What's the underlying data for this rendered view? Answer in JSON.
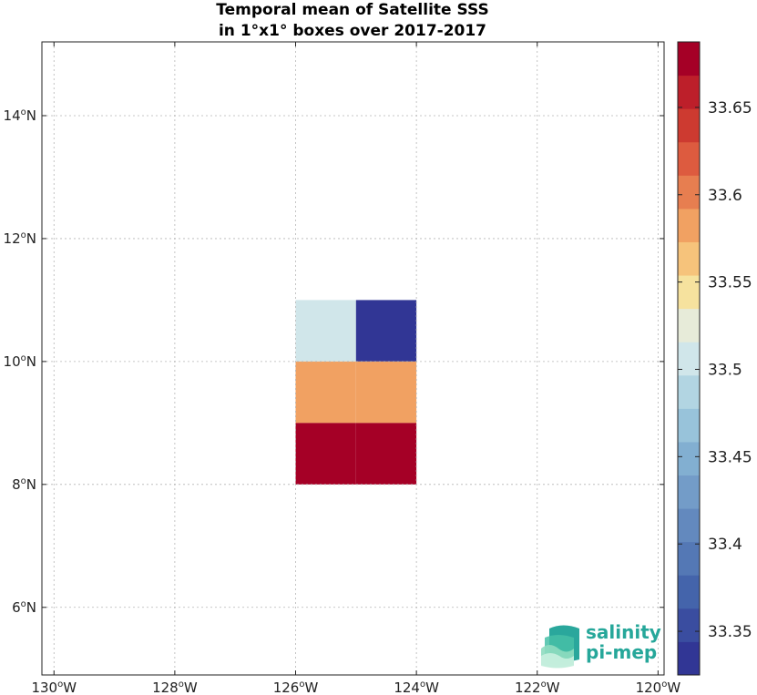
{
  "chart_data": {
    "type": "heatmap",
    "title": [
      "Temporal mean of Satellite SSS",
      "in 1°x1° boxes over 2017-2017"
    ],
    "xlim": [
      -130.2,
      -119.9
    ],
    "ylim": [
      4.9,
      15.2
    ],
    "x_ticks": [
      {
        "value": -130,
        "label": "130",
        "hemi": "W"
      },
      {
        "value": -128,
        "label": "128",
        "hemi": "W"
      },
      {
        "value": -126,
        "label": "126",
        "hemi": "W"
      },
      {
        "value": -124,
        "label": "124",
        "hemi": "W"
      },
      {
        "value": -122,
        "label": "122",
        "hemi": "W"
      },
      {
        "value": -120,
        "label": "120",
        "hemi": "W"
      }
    ],
    "y_ticks": [
      {
        "value": 6,
        "label": "6",
        "hemi": "N"
      },
      {
        "value": 8,
        "label": "8",
        "hemi": "N"
      },
      {
        "value": 10,
        "label": "10",
        "hemi": "N"
      },
      {
        "value": 12,
        "label": "12",
        "hemi": "N"
      },
      {
        "value": 14,
        "label": "14",
        "hemi": "N"
      }
    ],
    "grid": true,
    "cells": [
      {
        "lon_min": -126,
        "lon_max": -125,
        "lat_min": 10,
        "lat_max": 11,
        "value": 33.5
      },
      {
        "lon_min": -125,
        "lon_max": -124,
        "lat_min": 10,
        "lat_max": 11,
        "value": 33.33
      },
      {
        "lon_min": -126,
        "lon_max": -125,
        "lat_min": 9,
        "lat_max": 10,
        "value": 33.58
      },
      {
        "lon_min": -125,
        "lon_max": -124,
        "lat_min": 9,
        "lat_max": 10,
        "value": 33.58
      },
      {
        "lon_min": -126,
        "lon_max": -125,
        "lat_min": 8,
        "lat_max": 9,
        "value": 33.68
      },
      {
        "lon_min": -125,
        "lon_max": -124,
        "lat_min": 8,
        "lat_max": 9,
        "value": 33.68
      }
    ],
    "colorbar": {
      "vmin": 33.325,
      "vmax": 33.6875,
      "colors": [
        "#313695",
        "#3a4da0",
        "#4464ab",
        "#5478b5",
        "#6389be",
        "#739cc8",
        "#82afd1",
        "#98c3da",
        "#b2d5e2",
        "#d0e6ea",
        "#e7ebd9",
        "#f6e29e",
        "#f6c37b",
        "#f1a162",
        "#e77e50",
        "#dd5b3f",
        "#cd3a30",
        "#bd1f2a",
        "#a50026"
      ],
      "ticks": [
        {
          "value": 33.35,
          "label": "33.35"
        },
        {
          "value": 33.4,
          "label": "33.4"
        },
        {
          "value": 33.45,
          "label": "33.45"
        },
        {
          "value": 33.5,
          "label": "33.5"
        },
        {
          "value": 33.55,
          "label": "33.55"
        },
        {
          "value": 33.6,
          "label": "33.6"
        },
        {
          "value": 33.65,
          "label": "33.65"
        }
      ]
    },
    "logo": {
      "line1": "salinity",
      "line2": "pi-mep",
      "color": "#26a79a"
    }
  }
}
